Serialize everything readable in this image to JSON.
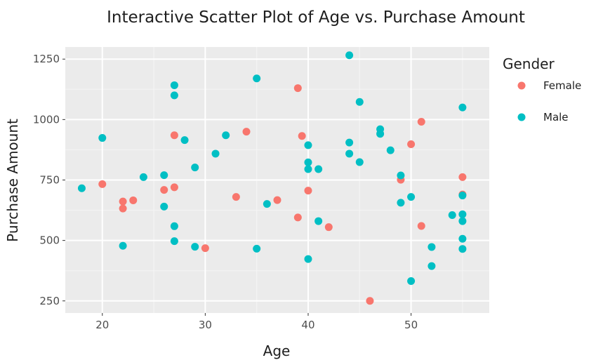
{
  "chart_data": {
    "type": "scatter",
    "title": "Interactive Scatter Plot of Age vs. Purchase Amount",
    "xlabel": "Age",
    "ylabel": "Purchase Amount",
    "xlim": [
      16.4,
      57.6
    ],
    "ylim": [
      200,
      1300
    ],
    "x_ticks": [
      20,
      30,
      40,
      50
    ],
    "y_ticks": [
      250,
      500,
      750,
      1000,
      1250
    ],
    "grid": true,
    "legend": {
      "title": "Gender",
      "position": "right"
    },
    "series": [
      {
        "name": "Female",
        "color": "#F8766D",
        "points": [
          {
            "x": 20,
            "y": 733
          },
          {
            "x": 22,
            "y": 661
          },
          {
            "x": 22,
            "y": 632
          },
          {
            "x": 23,
            "y": 666
          },
          {
            "x": 26,
            "y": 709
          },
          {
            "x": 27,
            "y": 935
          },
          {
            "x": 27,
            "y": 720
          },
          {
            "x": 30,
            "y": 468
          },
          {
            "x": 33,
            "y": 680
          },
          {
            "x": 34,
            "y": 950
          },
          {
            "x": 37,
            "y": 667
          },
          {
            "x": 39,
            "y": 1130
          },
          {
            "x": 39,
            "y": 595
          },
          {
            "x": 39.4,
            "y": 932
          },
          {
            "x": 40,
            "y": 706
          },
          {
            "x": 42,
            "y": 555
          },
          {
            "x": 46,
            "y": 250
          },
          {
            "x": 49,
            "y": 751
          },
          {
            "x": 50,
            "y": 898
          },
          {
            "x": 51,
            "y": 991
          },
          {
            "x": 51,
            "y": 560
          },
          {
            "x": 55,
            "y": 762
          },
          {
            "x": 55,
            "y": 690
          }
        ]
      },
      {
        "name": "Male",
        "color": "#00BFC4",
        "points": [
          {
            "x": 18,
            "y": 716
          },
          {
            "x": 20,
            "y": 924
          },
          {
            "x": 22,
            "y": 478
          },
          {
            "x": 24,
            "y": 762
          },
          {
            "x": 26,
            "y": 770
          },
          {
            "x": 26,
            "y": 640
          },
          {
            "x": 27,
            "y": 1142
          },
          {
            "x": 27,
            "y": 1100
          },
          {
            "x": 27,
            "y": 559
          },
          {
            "x": 27,
            "y": 497
          },
          {
            "x": 28,
            "y": 915
          },
          {
            "x": 29,
            "y": 802
          },
          {
            "x": 29,
            "y": 474
          },
          {
            "x": 31,
            "y": 859
          },
          {
            "x": 32,
            "y": 935
          },
          {
            "x": 35,
            "y": 1170
          },
          {
            "x": 35,
            "y": 466
          },
          {
            "x": 36,
            "y": 651
          },
          {
            "x": 40,
            "y": 894
          },
          {
            "x": 40,
            "y": 823
          },
          {
            "x": 40,
            "y": 795
          },
          {
            "x": 40,
            "y": 423
          },
          {
            "x": 41,
            "y": 795
          },
          {
            "x": 41,
            "y": 580
          },
          {
            "x": 44,
            "y": 1266
          },
          {
            "x": 44,
            "y": 905
          },
          {
            "x": 44,
            "y": 859
          },
          {
            "x": 45,
            "y": 1073
          },
          {
            "x": 45,
            "y": 824
          },
          {
            "x": 47,
            "y": 960
          },
          {
            "x": 47,
            "y": 941
          },
          {
            "x": 48,
            "y": 873
          },
          {
            "x": 49,
            "y": 769
          },
          {
            "x": 49,
            "y": 656
          },
          {
            "x": 50,
            "y": 680
          },
          {
            "x": 50,
            "y": 332
          },
          {
            "x": 52,
            "y": 473
          },
          {
            "x": 52,
            "y": 394
          },
          {
            "x": 54,
            "y": 605
          },
          {
            "x": 55,
            "y": 1050
          },
          {
            "x": 55,
            "y": 686
          },
          {
            "x": 55,
            "y": 608
          },
          {
            "x": 55,
            "y": 580
          },
          {
            "x": 55,
            "y": 507
          },
          {
            "x": 55,
            "y": 465
          }
        ]
      }
    ]
  }
}
